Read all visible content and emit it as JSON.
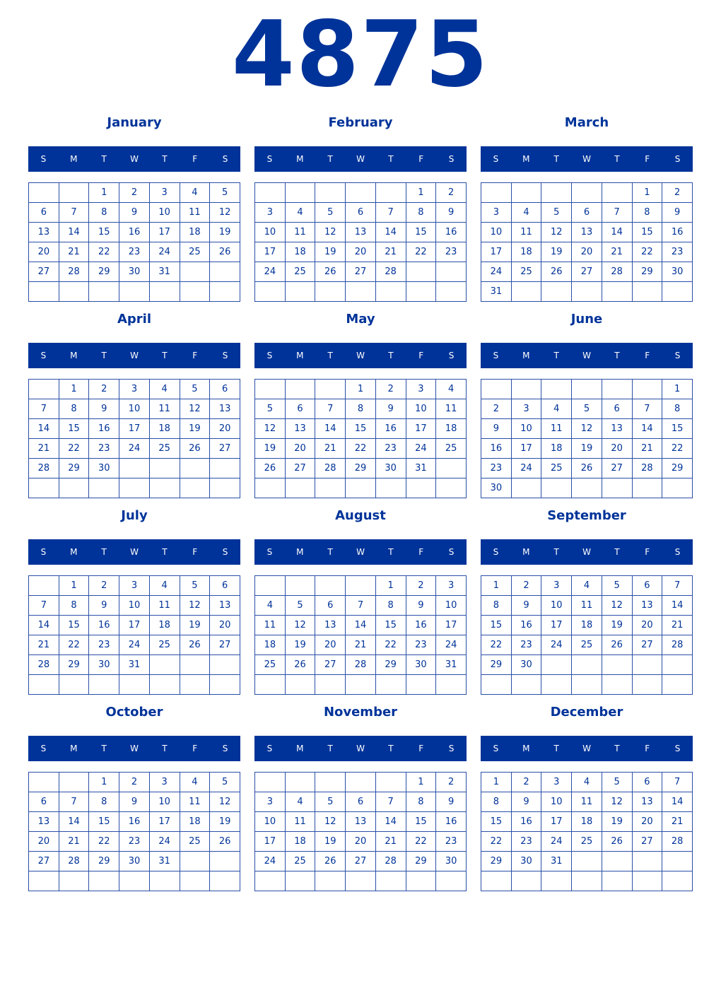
{
  "year": "4875",
  "colors": {
    "accent": "#003399",
    "header_text": "#ffffff"
  },
  "weekday_labels": [
    "S",
    "M",
    "T",
    "W",
    "T",
    "F",
    "S"
  ],
  "months": [
    {
      "name": "January",
      "weeks": [
        [
          "",
          "",
          1,
          2,
          3,
          4,
          5
        ],
        [
          6,
          7,
          8,
          9,
          10,
          11,
          12
        ],
        [
          13,
          14,
          15,
          16,
          17,
          18,
          19
        ],
        [
          20,
          21,
          22,
          23,
          24,
          25,
          26
        ],
        [
          27,
          28,
          29,
          30,
          31,
          "",
          ""
        ],
        [
          "",
          "",
          "",
          "",
          "",
          "",
          ""
        ]
      ]
    },
    {
      "name": "February",
      "weeks": [
        [
          "",
          "",
          "",
          "",
          "",
          1,
          2
        ],
        [
          3,
          4,
          5,
          6,
          7,
          8,
          9
        ],
        [
          10,
          11,
          12,
          13,
          14,
          15,
          16
        ],
        [
          17,
          18,
          19,
          20,
          21,
          22,
          23
        ],
        [
          24,
          25,
          26,
          27,
          28,
          "",
          ""
        ],
        [
          "",
          "",
          "",
          "",
          "",
          "",
          ""
        ]
      ]
    },
    {
      "name": "March",
      "weeks": [
        [
          "",
          "",
          "",
          "",
          "",
          1,
          2
        ],
        [
          3,
          4,
          5,
          6,
          7,
          8,
          9
        ],
        [
          10,
          11,
          12,
          13,
          14,
          15,
          16
        ],
        [
          17,
          18,
          19,
          20,
          21,
          22,
          23
        ],
        [
          24,
          25,
          26,
          27,
          28,
          29,
          30
        ],
        [
          31,
          "",
          "",
          "",
          "",
          "",
          ""
        ]
      ]
    },
    {
      "name": "April",
      "weeks": [
        [
          "",
          1,
          2,
          3,
          4,
          5,
          6
        ],
        [
          7,
          8,
          9,
          10,
          11,
          12,
          13
        ],
        [
          14,
          15,
          16,
          17,
          18,
          19,
          20
        ],
        [
          21,
          22,
          23,
          24,
          25,
          26,
          27
        ],
        [
          28,
          29,
          30,
          "",
          "",
          "",
          ""
        ],
        [
          "",
          "",
          "",
          "",
          "",
          "",
          ""
        ]
      ]
    },
    {
      "name": "May",
      "weeks": [
        [
          "",
          "",
          "",
          1,
          2,
          3,
          4
        ],
        [
          5,
          6,
          7,
          8,
          9,
          10,
          11
        ],
        [
          12,
          13,
          14,
          15,
          16,
          17,
          18
        ],
        [
          19,
          20,
          21,
          22,
          23,
          24,
          25
        ],
        [
          26,
          27,
          28,
          29,
          30,
          31,
          ""
        ],
        [
          "",
          "",
          "",
          "",
          "",
          "",
          ""
        ]
      ]
    },
    {
      "name": "June",
      "weeks": [
        [
          "",
          "",
          "",
          "",
          "",
          "",
          1
        ],
        [
          2,
          3,
          4,
          5,
          6,
          7,
          8
        ],
        [
          9,
          10,
          11,
          12,
          13,
          14,
          15
        ],
        [
          16,
          17,
          18,
          19,
          20,
          21,
          22
        ],
        [
          23,
          24,
          25,
          26,
          27,
          28,
          29
        ],
        [
          30,
          "",
          "",
          "",
          "",
          "",
          ""
        ]
      ]
    },
    {
      "name": "July",
      "weeks": [
        [
          "",
          1,
          2,
          3,
          4,
          5,
          6
        ],
        [
          7,
          8,
          9,
          10,
          11,
          12,
          13
        ],
        [
          14,
          15,
          16,
          17,
          18,
          19,
          20
        ],
        [
          21,
          22,
          23,
          24,
          25,
          26,
          27
        ],
        [
          28,
          29,
          30,
          31,
          "",
          "",
          ""
        ],
        [
          "",
          "",
          "",
          "",
          "",
          "",
          ""
        ]
      ]
    },
    {
      "name": "August",
      "weeks": [
        [
          "",
          "",
          "",
          "",
          1,
          2,
          3
        ],
        [
          4,
          5,
          6,
          7,
          8,
          9,
          10
        ],
        [
          11,
          12,
          13,
          14,
          15,
          16,
          17
        ],
        [
          18,
          19,
          20,
          21,
          22,
          23,
          24
        ],
        [
          25,
          26,
          27,
          28,
          29,
          30,
          31
        ],
        [
          "",
          "",
          "",
          "",
          "",
          "",
          ""
        ]
      ]
    },
    {
      "name": "September",
      "weeks": [
        [
          1,
          2,
          3,
          4,
          5,
          6,
          7
        ],
        [
          8,
          9,
          10,
          11,
          12,
          13,
          14
        ],
        [
          15,
          16,
          17,
          18,
          19,
          20,
          21
        ],
        [
          22,
          23,
          24,
          25,
          26,
          27,
          28
        ],
        [
          29,
          30,
          "",
          "",
          "",
          "",
          ""
        ],
        [
          "",
          "",
          "",
          "",
          "",
          "",
          ""
        ]
      ]
    },
    {
      "name": "October",
      "weeks": [
        [
          "",
          "",
          1,
          2,
          3,
          4,
          5
        ],
        [
          6,
          7,
          8,
          9,
          10,
          11,
          12
        ],
        [
          13,
          14,
          15,
          16,
          17,
          18,
          19
        ],
        [
          20,
          21,
          22,
          23,
          24,
          25,
          26
        ],
        [
          27,
          28,
          29,
          30,
          31,
          "",
          ""
        ],
        [
          "",
          "",
          "",
          "",
          "",
          "",
          ""
        ]
      ]
    },
    {
      "name": "November",
      "weeks": [
        [
          "",
          "",
          "",
          "",
          "",
          1,
          2
        ],
        [
          3,
          4,
          5,
          6,
          7,
          8,
          9
        ],
        [
          10,
          11,
          12,
          13,
          14,
          15,
          16
        ],
        [
          17,
          18,
          19,
          20,
          21,
          22,
          23
        ],
        [
          24,
          25,
          26,
          27,
          28,
          29,
          30
        ],
        [
          "",
          "",
          "",
          "",
          "",
          "",
          ""
        ]
      ]
    },
    {
      "name": "December",
      "weeks": [
        [
          1,
          2,
          3,
          4,
          5,
          6,
          7
        ],
        [
          8,
          9,
          10,
          11,
          12,
          13,
          14
        ],
        [
          15,
          16,
          17,
          18,
          19,
          20,
          21
        ],
        [
          22,
          23,
          24,
          25,
          26,
          27,
          28
        ],
        [
          29,
          30,
          31,
          "",
          "",
          "",
          ""
        ],
        [
          "",
          "",
          "",
          "",
          "",
          "",
          ""
        ]
      ]
    }
  ]
}
